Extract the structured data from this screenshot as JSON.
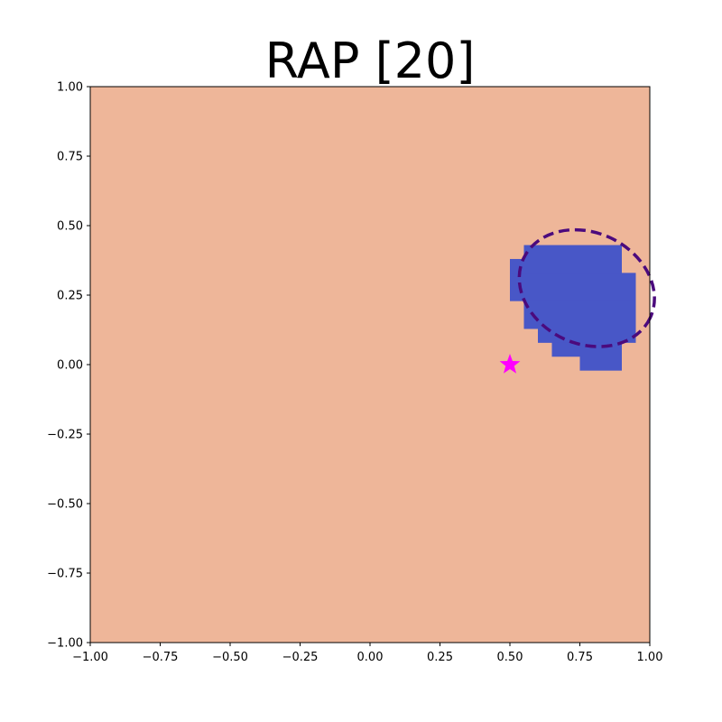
{
  "chart_data": {
    "type": "heatmap",
    "title": "RAP [20]",
    "xlabel": "",
    "ylabel": "",
    "xlim": [
      -1.0,
      1.0
    ],
    "ylim": [
      -1.0,
      1.0
    ],
    "xticks": [
      "−1.00",
      "−0.75",
      "−0.50",
      "−0.25",
      "0.00",
      "0.25",
      "0.50",
      "0.75",
      "1.00"
    ],
    "yticks": [
      "−1.00",
      "−0.75",
      "−0.50",
      "−0.25",
      "0.00",
      "0.25",
      "0.50",
      "0.75",
      "1.00"
    ],
    "xtick_values": [
      -1.0,
      -0.75,
      -0.5,
      -0.25,
      0.0,
      0.25,
      0.5,
      0.75,
      1.0
    ],
    "ytick_values": [
      -1.0,
      -0.75,
      -0.5,
      -0.25,
      0.0,
      0.25,
      0.5,
      0.75,
      1.0
    ],
    "grid": false,
    "background_region": {
      "color": "#eeb699"
    },
    "region": {
      "color": "#4857c7",
      "cell_size": 0.05,
      "bands": [
        {
          "y": [
            0.43,
            0.38
          ],
          "x": [
            0.55,
            0.9
          ]
        },
        {
          "y": [
            0.38,
            0.33
          ],
          "x": [
            0.5,
            0.9
          ]
        },
        {
          "y": [
            0.33,
            0.23
          ],
          "x": [
            0.5,
            0.95
          ]
        },
        {
          "y": [
            0.23,
            0.13
          ],
          "x": [
            0.55,
            0.95
          ]
        },
        {
          "y": [
            0.13,
            0.08
          ],
          "x": [
            0.6,
            0.95
          ]
        },
        {
          "y": [
            0.08,
            0.03
          ],
          "x": [
            0.65,
            0.9
          ]
        },
        {
          "y": [
            0.03,
            -0.02
          ],
          "x": [
            0.75,
            0.9
          ]
        }
      ]
    },
    "boundary_ellipse": {
      "center": [
        0.775,
        0.275
      ],
      "radius_x": 0.25,
      "radius_y": 0.2,
      "rotation_deg": -25,
      "color": "#4b0a7d",
      "style": "dashed"
    },
    "marker": {
      "x": 0.5,
      "y": 0.0,
      "shape": "star",
      "color": "#ff00ff"
    }
  }
}
